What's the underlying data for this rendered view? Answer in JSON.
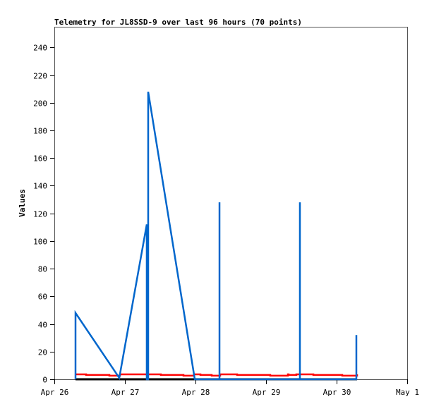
{
  "chart_data": {
    "type": "line",
    "title": "Telemetry for JL8SSD-9 over last 96 hours (70 points)",
    "ylabel": "Values",
    "xlabel": "",
    "xlim": [
      "Apr 26 00:00",
      "May 1 00:00"
    ],
    "ylim": [
      0,
      255
    ],
    "x_ticks": [
      "Apr 26",
      "Apr 27",
      "Apr 28",
      "Apr 29",
      "Apr 30",
      "May 1"
    ],
    "y_ticks": [
      0,
      20,
      40,
      60,
      80,
      100,
      120,
      140,
      160,
      180,
      200,
      220,
      240
    ],
    "grid": false,
    "series": [
      {
        "color": "#000000",
        "step": false,
        "points": [
          [
            "Apr 26 07:12",
            0
          ],
          [
            "Apr 30 06:58",
            0
          ]
        ]
      },
      {
        "color": "#ff0000",
        "step": true,
        "points": [
          [
            "Apr 26 07:12",
            3.6
          ],
          [
            "Apr 26 10:48",
            3.1
          ],
          [
            "Apr 26 18:43",
            2.6
          ],
          [
            "Apr 26 22:19",
            3.6
          ],
          [
            "Apr 27 12:14",
            3.1
          ],
          [
            "Apr 27 19:55",
            2.6
          ],
          [
            "Apr 27 23:31",
            3.6
          ],
          [
            "Apr 28 01:41",
            3.1
          ],
          [
            "Apr 28 05:31",
            2.6
          ],
          [
            "Apr 28 08:24",
            3.6
          ],
          [
            "Apr 28 14:10",
            3.1
          ],
          [
            "Apr 29 01:26",
            2.6
          ],
          [
            "Apr 29 07:26",
            3.6
          ],
          [
            "Apr 29 07:40",
            3.1
          ],
          [
            "Apr 29 10:19",
            3.6
          ],
          [
            "Apr 29 16:05",
            3.1
          ],
          [
            "Apr 30 01:55",
            2.6
          ],
          [
            "Apr 30 06:58",
            3.6
          ]
        ]
      },
      {
        "color": "#0066cc",
        "step": false,
        "points": [
          [
            "Apr 26 07:12",
            0
          ],
          [
            "Apr 26 07:12",
            48
          ],
          [
            "Apr 26 22:05",
            1
          ],
          [
            "Apr 27 07:26",
            112
          ],
          [
            "Apr 27 07:26",
            0
          ],
          [
            "Apr 27 07:55",
            0
          ],
          [
            "Apr 27 07:55",
            208
          ],
          [
            "Apr 27 23:46",
            0
          ],
          [
            "Apr 28 08:10",
            0
          ],
          [
            "Apr 28 08:10",
            128
          ],
          [
            "Apr 28 08:10",
            0
          ],
          [
            "Apr 29 11:31",
            0
          ],
          [
            "Apr 29 11:31",
            128
          ],
          [
            "Apr 29 11:31",
            0
          ],
          [
            "Apr 30 06:43",
            0
          ],
          [
            "Apr 30 06:43",
            32
          ]
        ]
      }
    ]
  }
}
